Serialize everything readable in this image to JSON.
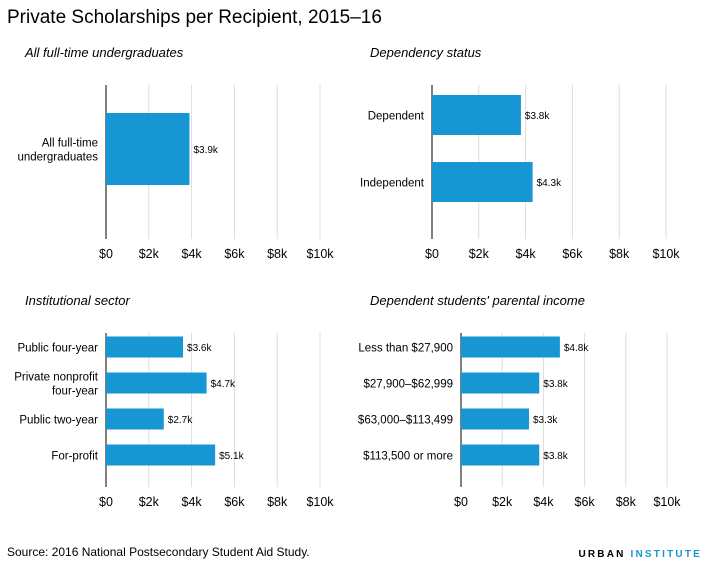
{
  "title": "Private Scholarships per Recipient, 2015–16",
  "source": "Source: 2016 National Postsecondary Student Aid Study.",
  "brand": {
    "part1": "URBAN ",
    "part2": "INSTITUTE"
  },
  "colors": {
    "bar": "#1696d2",
    "grid": "#dedddd",
    "axis": "#000000"
  },
  "chart_data": [
    {
      "type": "bar",
      "orientation": "horizontal",
      "title": "All full-time undergraduates",
      "categories": [
        "All full-time undergraduates"
      ],
      "category_lines": [
        [
          "All full-time",
          "undergraduates"
        ]
      ],
      "values": [
        3.9
      ],
      "value_labels": [
        "$3.9k"
      ],
      "xlim": [
        0,
        10
      ],
      "xticks": [
        "$0",
        "$2k",
        "$4k",
        "$6k",
        "$8k",
        "$10k"
      ],
      "grid": true
    },
    {
      "type": "bar",
      "orientation": "horizontal",
      "title": "Dependency status",
      "categories": [
        "Dependent",
        "Independent"
      ],
      "category_lines": [
        [
          "Dependent"
        ],
        [
          "Independent"
        ]
      ],
      "values": [
        3.8,
        4.3
      ],
      "value_labels": [
        "$3.8k",
        "$4.3k"
      ],
      "xlim": [
        0,
        10
      ],
      "xticks": [
        "$0",
        "$2k",
        "$4k",
        "$6k",
        "$8k",
        "$10k"
      ],
      "grid": true
    },
    {
      "type": "bar",
      "orientation": "horizontal",
      "title": "Institutional sector",
      "categories": [
        "Public four-year",
        "Private nonprofit four-year",
        "Public two-year",
        "For-profit"
      ],
      "category_lines": [
        [
          "Public four-year"
        ],
        [
          "Private nonprofit",
          "four-year"
        ],
        [
          "Public two-year"
        ],
        [
          "For-profit"
        ]
      ],
      "values": [
        3.6,
        4.7,
        2.7,
        5.1
      ],
      "value_labels": [
        "$3.6k",
        "$4.7k",
        "$2.7k",
        "$5.1k"
      ],
      "xlim": [
        0,
        10
      ],
      "xticks": [
        "$0",
        "$2k",
        "$4k",
        "$6k",
        "$8k",
        "$10k"
      ],
      "grid": true
    },
    {
      "type": "bar",
      "orientation": "horizontal",
      "title": "Dependent students' parental income",
      "categories": [
        "Less than $27,900",
        "$27,900–$62,999",
        "$63,000–$113,499",
        "$113,500 or more"
      ],
      "category_lines": [
        [
          "Less than $27,900"
        ],
        [
          "$27,900–$62,999"
        ],
        [
          "$63,000–$113,499"
        ],
        [
          "$113,500 or more"
        ]
      ],
      "values": [
        4.8,
        3.8,
        3.3,
        3.8
      ],
      "value_labels": [
        "$4.8k",
        "$3.8k",
        "$3.3k",
        "$3.8k"
      ],
      "xlim": [
        0,
        10
      ],
      "xticks": [
        "$0",
        "$2k",
        "$4k",
        "$6k",
        "$8k",
        "$10k"
      ],
      "grid": true
    }
  ]
}
